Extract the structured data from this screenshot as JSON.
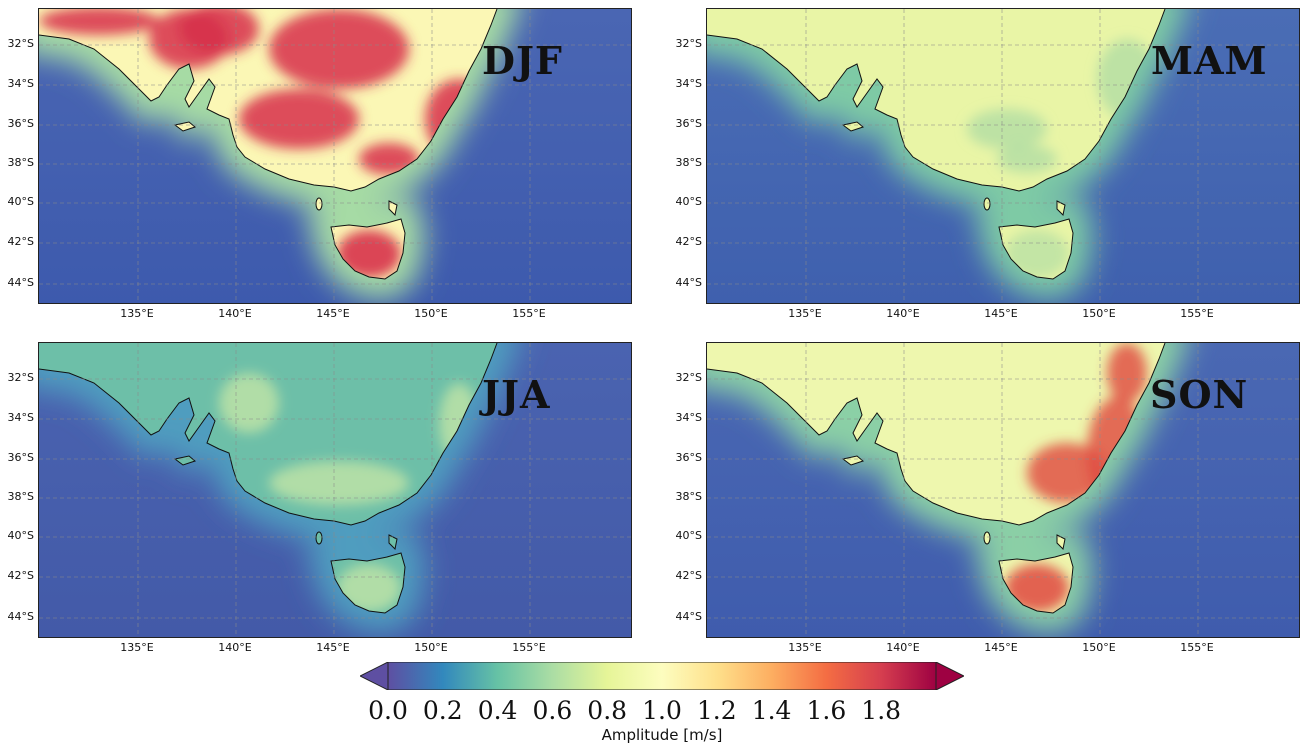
{
  "panels": [
    {
      "season": "DJF",
      "id": "djf"
    },
    {
      "season": "MAM",
      "id": "mam"
    },
    {
      "season": "JJA",
      "id": "jja"
    },
    {
      "season": "SON",
      "id": "son"
    }
  ],
  "lat_ticks": [
    "32°S",
    "34°S",
    "36°S",
    "38°S",
    "40°S",
    "42°S",
    "44°S"
  ],
  "lon_ticks": [
    "135°E",
    "140°E",
    "145°E",
    "150°E",
    "155°E"
  ],
  "colorbar": {
    "label": "Amplitude [m/s]",
    "ticks": [
      "0.0",
      "0.2",
      "0.4",
      "0.6",
      "0.8",
      "1.0",
      "1.2",
      "1.4",
      "1.6",
      "1.8"
    ],
    "range": [
      0.0,
      2.0
    ],
    "extend": "both",
    "colormap": "Spectral_r"
  },
  "colors": {
    "low": "#5e4fa2",
    "mid": "#fdfdbf",
    "high": "#9e0142",
    "coastline": "#111111",
    "grid": "#888888"
  }
}
